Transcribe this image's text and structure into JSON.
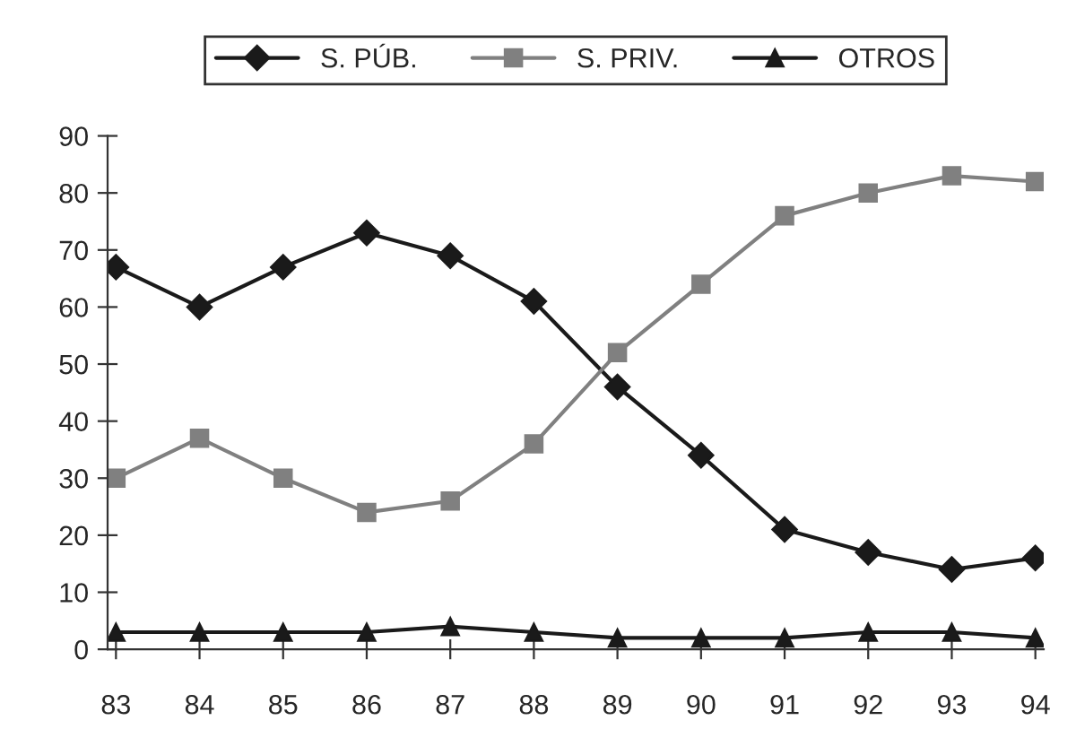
{
  "chart_data": {
    "type": "line",
    "categories": [
      "83",
      "84",
      "85",
      "86",
      "87",
      "88",
      "89",
      "90",
      "91",
      "92",
      "93",
      "94"
    ],
    "series": [
      {
        "name": "S. PÚB.",
        "color": "#1a1a1a",
        "marker": "diamond",
        "values": [
          67,
          60,
          67,
          73,
          69,
          61,
          46,
          34,
          21,
          17,
          14,
          16
        ]
      },
      {
        "name": "S. PRIV.",
        "color": "#808080",
        "marker": "square",
        "values": [
          30,
          37,
          30,
          24,
          26,
          36,
          52,
          64,
          76,
          80,
          83,
          82
        ]
      },
      {
        "name": "OTROS",
        "color": "#1a1a1a",
        "marker": "triangle",
        "values": [
          3,
          3,
          3,
          3,
          4,
          3,
          2,
          2,
          2,
          3,
          3,
          2
        ]
      }
    ],
    "ylim": [
      0,
      90
    ],
    "yticks": [
      0,
      10,
      20,
      30,
      40,
      50,
      60,
      70,
      80,
      90
    ],
    "grid": false,
    "legend": "top",
    "line_style": "solid"
  }
}
